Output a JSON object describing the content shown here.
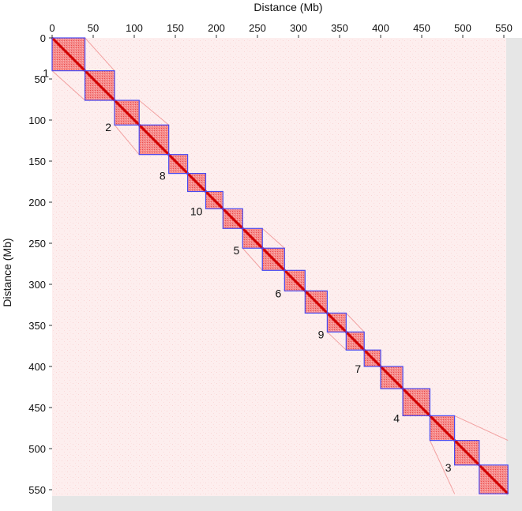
{
  "chart_data": {
    "type": "heatmap",
    "title": "",
    "xlabel": "Distance (Mb)",
    "ylabel": "Distance (Mb)",
    "xlim": [
      0,
      565
    ],
    "ylim": [
      0,
      565
    ],
    "x_ticks": [
      0,
      50,
      100,
      150,
      200,
      250,
      300,
      350,
      400,
      450,
      500,
      550
    ],
    "y_ticks": [
      0,
      50,
      100,
      150,
      200,
      250,
      300,
      350,
      400,
      450,
      500,
      550
    ],
    "x_axis_position": "top",
    "y_axis_direction": "downward",
    "colormap": [
      "#ffffff",
      "#ff0000"
    ],
    "box_color": "#4a4af0",
    "blocks": [
      {
        "start": 0,
        "end": 40,
        "label": "1"
      },
      {
        "start": 40,
        "end": 76,
        "label": ""
      },
      {
        "start": 76,
        "end": 106,
        "label": "2"
      },
      {
        "start": 106,
        "end": 142,
        "label": ""
      },
      {
        "start": 142,
        "end": 165,
        "label": "8"
      },
      {
        "start": 165,
        "end": 187,
        "label": ""
      },
      {
        "start": 187,
        "end": 208,
        "label": "10"
      },
      {
        "start": 208,
        "end": 232,
        "label": ""
      },
      {
        "start": 232,
        "end": 256,
        "label": "5"
      },
      {
        "start": 256,
        "end": 283,
        "label": ""
      },
      {
        "start": 283,
        "end": 308,
        "label": "6"
      },
      {
        "start": 308,
        "end": 335,
        "label": ""
      },
      {
        "start": 335,
        "end": 358,
        "label": "9"
      },
      {
        "start": 358,
        "end": 380,
        "label": ""
      },
      {
        "start": 380,
        "end": 400,
        "label": "7"
      },
      {
        "start": 400,
        "end": 427,
        "label": ""
      },
      {
        "start": 427,
        "end": 460,
        "label": "4"
      },
      {
        "start": 460,
        "end": 490,
        "label": ""
      },
      {
        "start": 490,
        "end": 520,
        "label": "3"
      },
      {
        "start": 520,
        "end": 555,
        "label": ""
      }
    ]
  }
}
